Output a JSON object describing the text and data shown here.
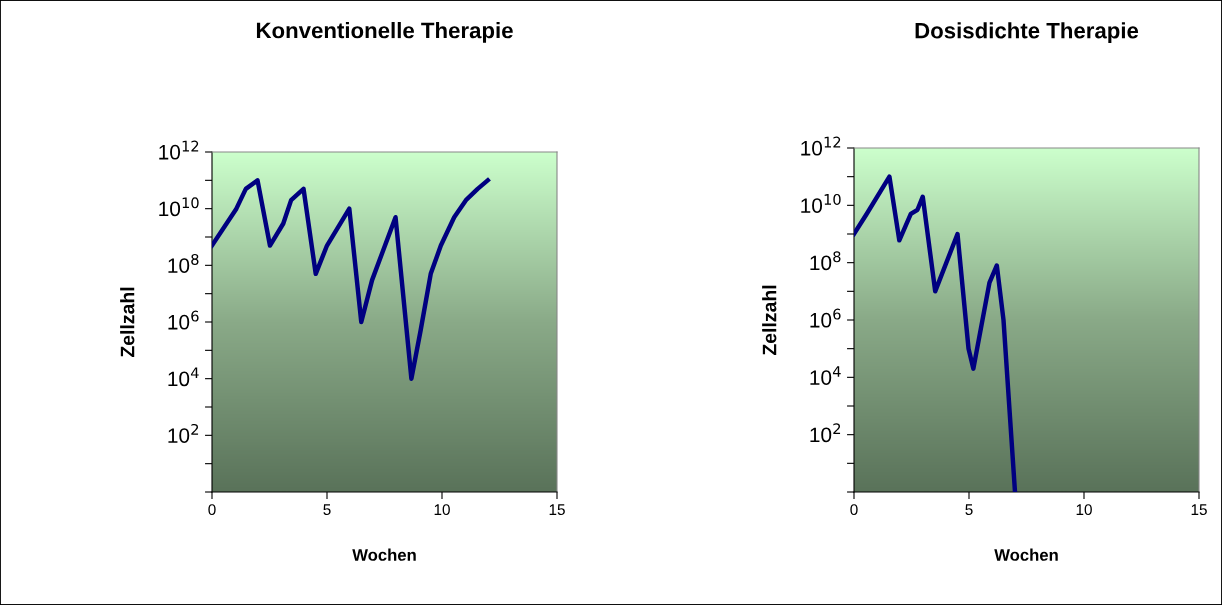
{
  "chart_data": [
    {
      "type": "line",
      "title": "Konventionelle Therapie",
      "xlabel": "Wochen",
      "ylabel": "Zellzahl",
      "log": "y",
      "grid": false,
      "marker": "none",
      "line_style": "solid",
      "x": [
        0,
        1.06,
        1.47,
        1.98,
        2.52,
        3.1,
        3.44,
        3.98,
        4.51,
        5.0,
        5.97,
        6.49,
        6.96,
        7.98,
        8.67,
        9.07,
        9.51,
        9.95,
        10.53,
        11.04,
        11.55,
        11.99
      ],
      "series": [
        {
          "color": "#000080",
          "values": [
            500000000.0,
            10000000000.0,
            50000000000.0,
            100000000000.0,
            500000000.0,
            3000000000.0,
            20000000000.0,
            50000000000.0,
            50000000.0,
            500000000.0,
            10000000000.0,
            1000000.0,
            30000000.0,
            5000000000.0,
            10000.0,
            500000.0,
            50000000.0,
            500000000.0,
            5000000000.0,
            20000000000.0,
            50000000000.0,
            100000000000.0
          ]
        }
      ],
      "xlim": [
        0,
        15
      ],
      "xticks": [
        0,
        5,
        10,
        15
      ],
      "ylim": [
        1,
        1000000000000.0
      ],
      "yticks": [
        {
          "value": 1,
          "label": null
        },
        {
          "value": 10,
          "label": null
        },
        {
          "value": 100,
          "label": "10$^{2}$"
        },
        {
          "value": 1000.0,
          "label": null
        },
        {
          "value": 10000.0,
          "label": "10$^{4}$"
        },
        {
          "value": 100000.0,
          "label": null
        },
        {
          "value": 1000000.0,
          "label": "10$^{6}$"
        },
        {
          "value": 10000000.0,
          "label": null
        },
        {
          "value": 100000000.0,
          "label": "10$^{8}$"
        },
        {
          "value": 1000000000.0,
          "label": null
        },
        {
          "value": 10000000000.0,
          "label": "10$^{10}$"
        },
        {
          "value": 100000000000.0,
          "label": null
        },
        {
          "value": 1000000000000.0,
          "label": "10$^{12}$"
        }
      ]
    },
    {
      "type": "line",
      "title": "Dosisdichte Therapie",
      "xlabel": "Wochen",
      "ylabel": "Zellzahl",
      "log": "y",
      "grid": false,
      "marker": "none",
      "line_style": "solid",
      "x": [
        0,
        0.55,
        1.54,
        1.97,
        2.47,
        2.76,
        2.99,
        3.53,
        4.5,
        4.98,
        5.19,
        5.89,
        6.21,
        6.5,
        7.0
      ],
      "series": [
        {
          "color": "#000080",
          "values": [
            1000000000.0,
            5000000000.0,
            100000000000.0,
            600000000.0,
            5000000000.0,
            7000000000.0,
            20000000000.0,
            10000000.0,
            1000000000.0,
            100000.0,
            20000.0,
            20000000.0,
            80000000.0,
            1000000.0,
            1
          ]
        }
      ],
      "xlim": [
        0,
        15
      ],
      "xticks": [
        0,
        5,
        10,
        15
      ],
      "ylim": [
        1,
        1000000000000.0
      ],
      "yticks": [
        {
          "value": 1,
          "label": null
        },
        {
          "value": 10,
          "label": null
        },
        {
          "value": 100,
          "label": "10$^{2}$"
        },
        {
          "value": 1000.0,
          "label": null
        },
        {
          "value": 10000.0,
          "label": "10$^{4}$"
        },
        {
          "value": 100000.0,
          "label": null
        },
        {
          "value": 1000000.0,
          "label": "10$^{6}$"
        },
        {
          "value": 10000000.0,
          "label": null
        },
        {
          "value": 100000000.0,
          "label": "10$^{8}$"
        },
        {
          "value": 1000000000.0,
          "label": null
        },
        {
          "value": 10000000000.0,
          "label": "10$^{10}$"
        },
        {
          "value": 100000000000.0,
          "label": null
        },
        {
          "value": 1000000000000.0,
          "label": "10$^{12}$"
        }
      ]
    }
  ]
}
